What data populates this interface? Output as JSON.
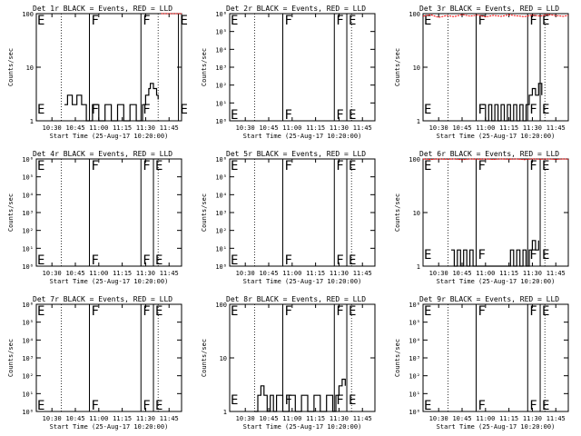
{
  "chart_data": {
    "type": "line",
    "x_start": "25-Aug-17 10:20:00",
    "x_range_minutes": [
      0,
      93
    ],
    "x_tick_labels": [
      "10:30",
      "10:45",
      "11:00",
      "11:15",
      "11:30",
      "11:45"
    ],
    "x_tick_minutes": [
      10,
      25,
      40,
      55,
      70,
      85
    ],
    "xlabel": "Start Time (25-Aug-17 10:20:00)",
    "ylabel": "Counts/sec",
    "legend_note": "BLACK = Events, RED = LLD",
    "series_colors": {
      "events": "#000000",
      "lld": "#ff0000"
    },
    "dotted_lines_minutes": [
      16,
      78
    ],
    "panels": [
      {
        "title": "Det 1r BLACK = Events, RED = LLD",
        "yscale": "log",
        "ylim": [
          1,
          100
        ],
        "y_ticks": [
          "1",
          "10",
          "100"
        ],
        "markers": [
          {
            "label": "E",
            "minute": 0.5
          },
          {
            "label": "F",
            "minute": 34
          },
          {
            "label": "F",
            "minute": 67
          },
          {
            "label": "E",
            "minute": 91
          }
        ],
        "events": {
          "x": [
            0,
            18,
            20,
            23,
            26,
            29,
            32,
            36,
            40,
            44,
            48,
            52,
            56,
            60,
            64,
            68,
            70,
            72,
            73,
            75,
            77,
            78
          ],
          "y": [
            null,
            2,
            3,
            2,
            3,
            2,
            1,
            2,
            1,
            2,
            1,
            2,
            1,
            2,
            1,
            2,
            3,
            4,
            5,
            4,
            3,
            2.5
          ]
        },
        "lld": {
          "x": [
            80,
            93
          ],
          "y": [
            100,
            100
          ]
        }
      },
      {
        "title": "Det 2r BLACK = Events, RED = LLD",
        "yscale": "log",
        "ylim": [
          1,
          1000000
        ],
        "y_ticks": [
          "10⁰",
          "10¹",
          "10²",
          "10³",
          "10⁴",
          "10⁵",
          "10⁶"
        ],
        "markers": [
          {
            "label": "E",
            "minute": 0.5
          },
          {
            "label": "F",
            "minute": 34
          },
          {
            "label": "F",
            "minute": 67
          },
          {
            "label": "E",
            "minute": 75
          }
        ],
        "events": {
          "x": [],
          "y": []
        },
        "lld": {
          "x": [],
          "y": []
        }
      },
      {
        "title": "Det 3r BLACK = Events, RED = LLD",
        "yscale": "log",
        "ylim": [
          1,
          100
        ],
        "y_ticks": [
          "1",
          "10",
          "100"
        ],
        "markers": [
          {
            "label": "E",
            "minute": 0.5
          },
          {
            "label": "F",
            "minute": 34
          },
          {
            "label": "F",
            "minute": 67
          },
          {
            "label": "E",
            "minute": 75
          }
        ],
        "events": {
          "x": [
            38,
            40,
            42,
            44,
            46,
            48,
            50,
            52,
            54,
            56,
            58,
            60,
            62,
            64,
            66,
            68,
            70,
            72,
            74,
            76
          ],
          "y": [
            2,
            1,
            2,
            1,
            2,
            1,
            2,
            1,
            2,
            1,
            2,
            1,
            2,
            1,
            2,
            3,
            4,
            3,
            5,
            3
          ]
        },
        "lld": {
          "x": [
            0,
            5,
            10,
            15,
            20,
            25,
            30,
            35,
            40,
            45,
            50,
            55,
            60,
            65,
            70,
            75,
            80,
            85,
            90,
            93
          ],
          "y": [
            90,
            95,
            85,
            92,
            88,
            96,
            90,
            94,
            87,
            93,
            89,
            95,
            91,
            88,
            94,
            90,
            96,
            92,
            89,
            93
          ]
        }
      },
      {
        "title": "Det 4r BLACK = Events, RED = LLD",
        "yscale": "log",
        "ylim": [
          1,
          1000000
        ],
        "y_ticks": [
          "10⁰",
          "10¹",
          "10²",
          "10³",
          "10⁴",
          "10⁵",
          "10⁶"
        ],
        "markers": [
          {
            "label": "E",
            "minute": 0.5
          },
          {
            "label": "F",
            "minute": 34
          },
          {
            "label": "F",
            "minute": 67
          },
          {
            "label": "E",
            "minute": 75
          }
        ],
        "events": {
          "x": [],
          "y": []
        },
        "lld": {
          "x": [],
          "y": []
        }
      },
      {
        "title": "Det 5r BLACK = Events, RED = LLD",
        "yscale": "log",
        "ylim": [
          1,
          1000000
        ],
        "y_ticks": [
          "10⁰",
          "10¹",
          "10²",
          "10³",
          "10⁴",
          "10⁵",
          "10⁶"
        ],
        "markers": [
          {
            "label": "E",
            "minute": 0.5
          },
          {
            "label": "F",
            "minute": 34
          },
          {
            "label": "F",
            "minute": 67
          },
          {
            "label": "E",
            "minute": 75
          }
        ],
        "events": {
          "x": [],
          "y": []
        },
        "lld": {
          "x": [],
          "y": []
        }
      },
      {
        "title": "Det 6r BLACK = Events, RED = LLD",
        "yscale": "log",
        "ylim": [
          1,
          100
        ],
        "y_ticks": [
          "1",
          "10",
          "100"
        ],
        "markers": [
          {
            "label": "E",
            "minute": 0.5
          },
          {
            "label": "F",
            "minute": 34
          },
          {
            "label": "F",
            "minute": 67
          },
          {
            "label": "E",
            "minute": 75
          }
        ],
        "events": {
          "x": [
            18,
            20,
            22,
            24,
            26,
            28,
            30,
            32,
            56,
            58,
            60,
            62,
            64,
            66,
            68,
            70,
            72,
            74
          ],
          "y": [
            2,
            1,
            2,
            1,
            2,
            1,
            2,
            1,
            2,
            1,
            2,
            1,
            2,
            1,
            2,
            3,
            2,
            3
          ]
        },
        "lld": {
          "x": [
            0,
            5,
            10,
            15,
            20,
            25,
            30,
            35,
            40,
            45,
            50,
            55,
            60,
            65,
            70,
            75,
            80,
            85,
            90,
            93
          ],
          "y": [
            100,
            98,
            100,
            99,
            100,
            97,
            100,
            99,
            100,
            98,
            100,
            99,
            100,
            97,
            100,
            99,
            100,
            98,
            100,
            99
          ]
        }
      },
      {
        "title": "Det 7r BLACK = Events, RED = LLD",
        "yscale": "log",
        "ylim": [
          1,
          1000000
        ],
        "y_ticks": [
          "10⁰",
          "10¹",
          "10²",
          "10³",
          "10⁴",
          "10⁵",
          "10⁶"
        ],
        "markers": [
          {
            "label": "E",
            "minute": 0.5
          },
          {
            "label": "F",
            "minute": 34
          },
          {
            "label": "F",
            "minute": 67
          },
          {
            "label": "E",
            "minute": 75
          }
        ],
        "events": {
          "x": [],
          "y": []
        },
        "lld": {
          "x": [],
          "y": []
        }
      },
      {
        "title": "Det 8r BLACK = Events, RED = LLD",
        "yscale": "log",
        "ylim": [
          1,
          100
        ],
        "y_ticks": [
          "1",
          "10",
          "100"
        ],
        "markers": [
          {
            "label": "E",
            "minute": 0.5
          },
          {
            "label": "F",
            "minute": 34
          },
          {
            "label": "F",
            "minute": 67
          },
          {
            "label": "E",
            "minute": 75
          }
        ],
        "events": {
          "x": [
            16,
            18,
            20,
            22,
            24,
            26,
            28,
            30,
            34,
            38,
            42,
            46,
            50,
            54,
            58,
            62,
            66,
            68,
            70,
            72,
            74
          ],
          "y": [
            1,
            2,
            3,
            2,
            1,
            2,
            1,
            2,
            1,
            2,
            1,
            2,
            1,
            2,
            1,
            2,
            1,
            2,
            3,
            4,
            3
          ]
        },
        "lld": {
          "x": [],
          "y": []
        }
      },
      {
        "title": "Det 9r BLACK = Events, RED = LLD",
        "yscale": "log",
        "ylim": [
          1,
          1000000
        ],
        "y_ticks": [
          "10⁰",
          "10¹",
          "10²",
          "10³",
          "10⁴",
          "10⁵",
          "10⁶"
        ],
        "markers": [
          {
            "label": "E",
            "minute": 0.5
          },
          {
            "label": "F",
            "minute": 34
          },
          {
            "label": "F",
            "minute": 67
          },
          {
            "label": "E",
            "minute": 75
          }
        ],
        "events": {
          "x": [],
          "y": []
        },
        "lld": {
          "x": [],
          "y": []
        }
      }
    ]
  }
}
